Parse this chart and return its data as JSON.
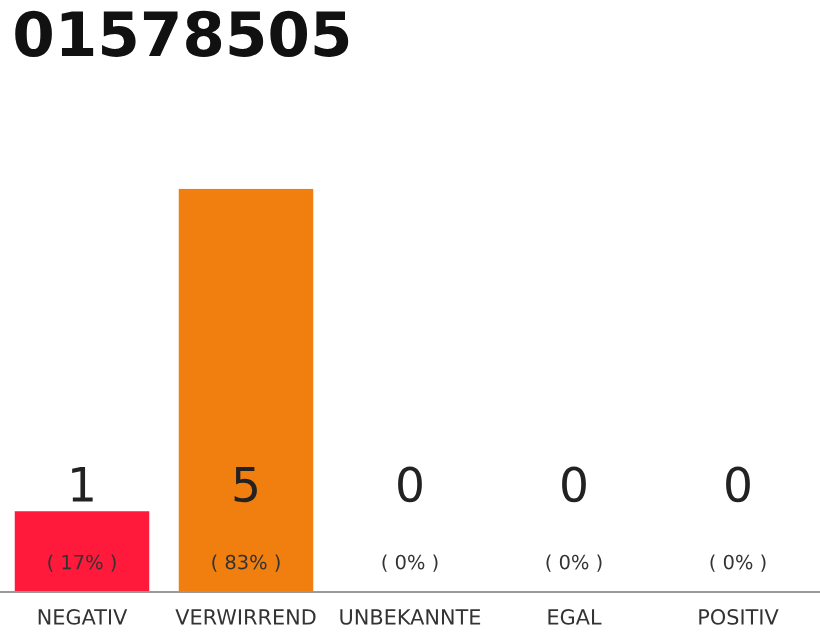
{
  "chart_data": {
    "type": "bar",
    "title": "01578505",
    "categories": [
      "NEGATIV",
      "VERWIRREND",
      "UNBEKANNTE",
      "EGAL",
      "POSITIV"
    ],
    "values": [
      1,
      5,
      0,
      0,
      0
    ],
    "colors": [
      "#ff1a3c",
      "#f07f0f",
      "#f07f0f",
      "#f07f0f",
      "#f07f0f"
    ],
    "value_labels": [
      "1\n( 17% )",
      "5\n( 83% )",
      "0\n( 0% )",
      "0\n( 0% )",
      "0\n( 0% )"
    ],
    "grid": false
  }
}
